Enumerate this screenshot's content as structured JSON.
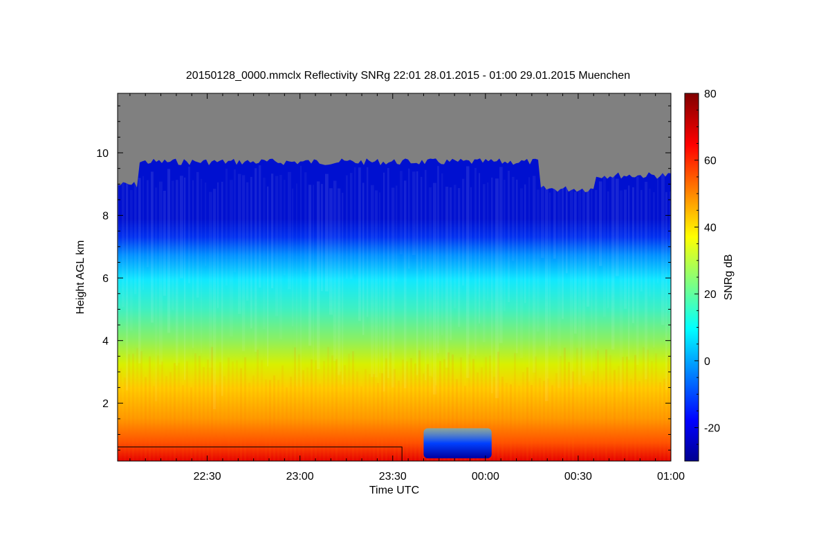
{
  "chart_data": {
    "type": "heatmap",
    "title": "20150128_0000.mmclx Reflectivity SNRg   22:01 28.01.2015 - 01:00 29.01.2015 Muenchen",
    "xlabel": "Time UTC",
    "ylabel": "Height AGL km",
    "colorbar_label": "SNRg dB",
    "x_range": [
      "22:01",
      "01:00"
    ],
    "y_range_km": [
      0.15,
      11.9
    ],
    "x_ticks": [
      {
        "label": "22:30",
        "minutes_after_2200": 30
      },
      {
        "label": "23:00",
        "minutes_after_2200": 60
      },
      {
        "label": "23:30",
        "minutes_after_2200": 90
      },
      {
        "label": "00:00",
        "minutes_after_2200": 120
      },
      {
        "label": "00:30",
        "minutes_after_2200": 150
      },
      {
        "label": "01:00",
        "minutes_after_2200": 180
      }
    ],
    "y_ticks": [
      {
        "label": "2",
        "value": 2
      },
      {
        "label": "4",
        "value": 4
      },
      {
        "label": "6",
        "value": 6
      },
      {
        "label": "8",
        "value": 8
      },
      {
        "label": "10",
        "value": 10
      }
    ],
    "colorbar_range": [
      -30,
      80
    ],
    "colorbar_ticks": [
      {
        "label": "-20",
        "value": -20
      },
      {
        "label": "0",
        "value": 0
      },
      {
        "label": "20",
        "value": 20
      },
      {
        "label": "40",
        "value": 40
      },
      {
        "label": "60",
        "value": 60
      },
      {
        "label": "80",
        "value": 80
      }
    ],
    "no_data_color": "#808080",
    "colormap": "jet",
    "signal_top_km": 9.6,
    "low_snr_patch": {
      "start": "23:40",
      "end": "00:02",
      "top_km": 1.2
    },
    "marked_region": {
      "start": "22:01",
      "end": "23:33",
      "top_km": 0.6
    }
  }
}
